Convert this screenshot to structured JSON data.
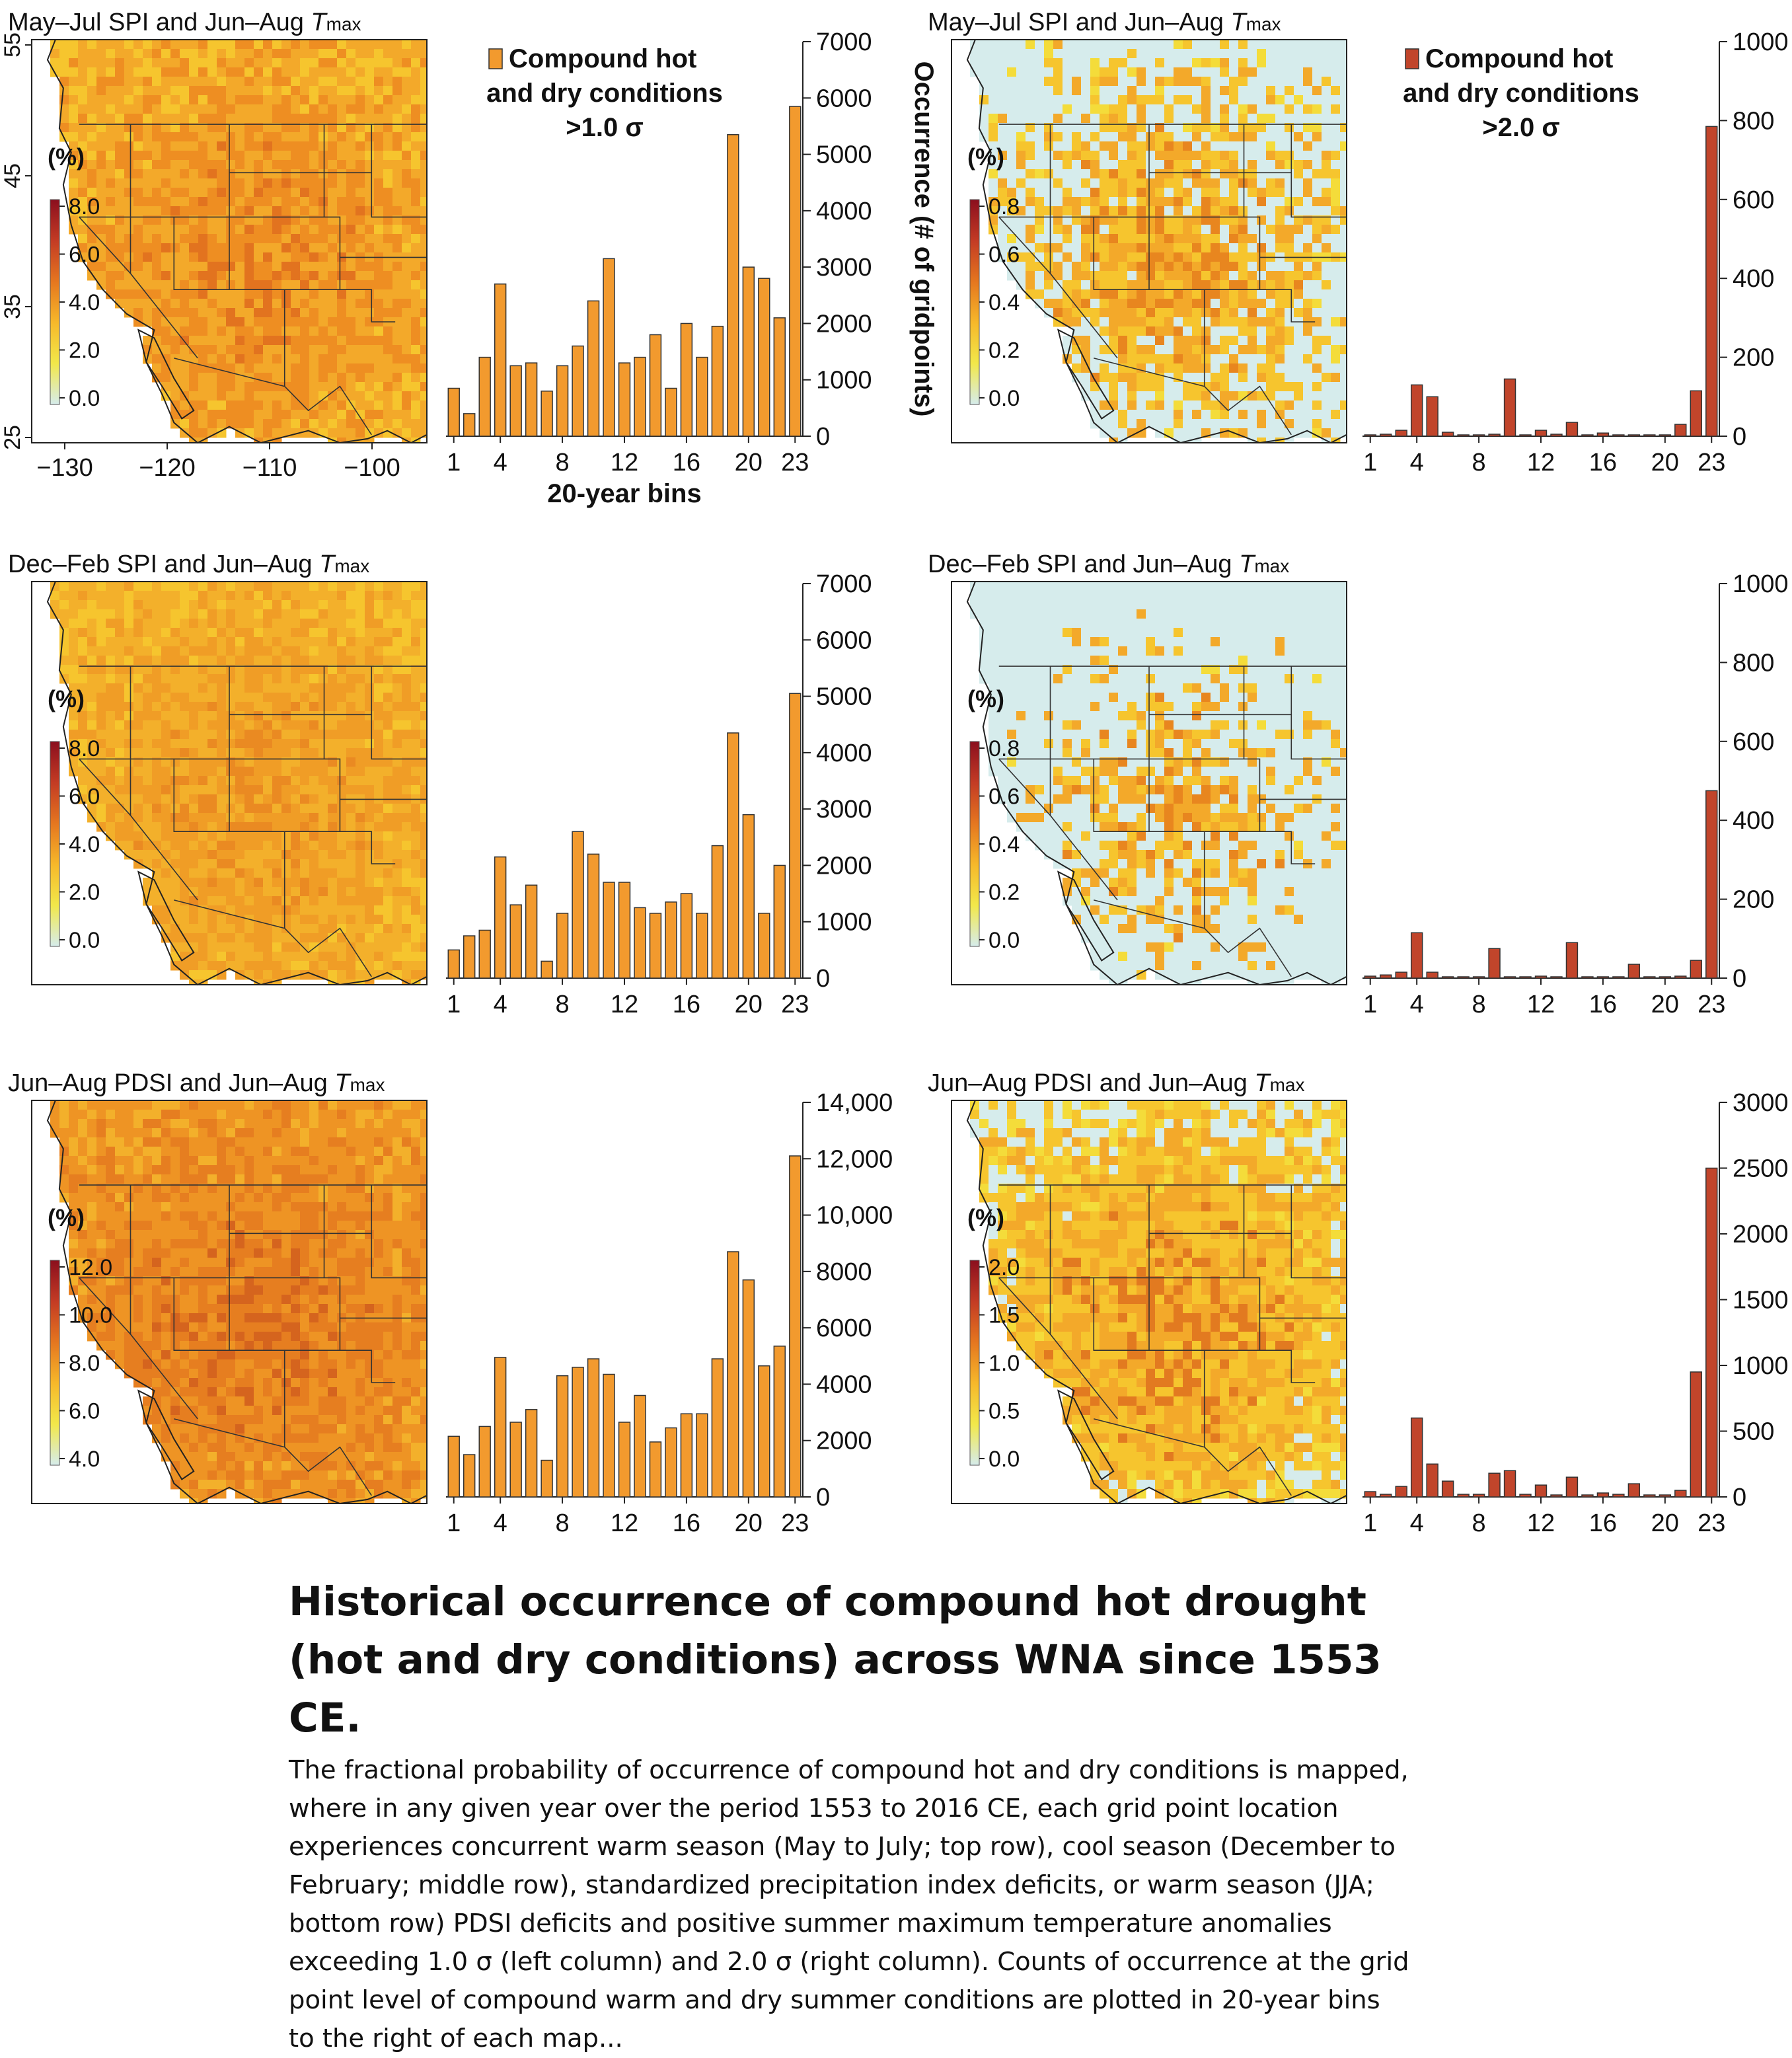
{
  "colors": {
    "orange": "#f29a2e",
    "red": "#c1452b",
    "ocean": "#ffffff",
    "low_map": "#d6ecec",
    "border": "#2a2a2a"
  },
  "panels": [
    {
      "map": {
        "title_main": "May–Jul SPI and Jun–Aug ",
        "title_t": "T",
        "title_sub": "max",
        "unit": "(%)",
        "colorbar_ticks": [
          "8.0",
          "6.0",
          "4.0",
          "2.0",
          "0.0"
        ],
        "colorbar_colors": [
          "#8b0f1e",
          "#c33b24",
          "#e5761f",
          "#f6b82a",
          "#f2e84a",
          "#d6ecec"
        ],
        "lat_ticks": [
          "55",
          "45",
          "35",
          "25"
        ],
        "lon_ticks": [
          "−130",
          "−120",
          "−110",
          "−100"
        ],
        "palette": [
          "#f6c52e",
          "#f3a92a",
          "#ee8e22",
          "#e2731f"
        ],
        "low_fraction": 0
      },
      "chart_data": {
        "type": "bar",
        "categories": [
          "1",
          "2",
          "3",
          "4",
          "5",
          "6",
          "7",
          "8",
          "9",
          "10",
          "11",
          "12",
          "13",
          "14",
          "15",
          "16",
          "17",
          "18",
          "19",
          "20",
          "21",
          "22",
          "23"
        ],
        "values": [
          850,
          400,
          1400,
          2700,
          1250,
          1300,
          800,
          1250,
          1600,
          2400,
          3150,
          1300,
          1400,
          1800,
          850,
          2000,
          1400,
          1950,
          5350,
          3000,
          2800,
          2100,
          5850
        ],
        "ylim": [
          0,
          7000
        ],
        "yticks": [
          "7000",
          "6000",
          "5000",
          "4000",
          "3000",
          "2000",
          "1000",
          "0"
        ],
        "xticks": [
          "1",
          "4",
          "8",
          "12",
          "16",
          "20",
          "23"
        ],
        "xlabel": "20-year bins",
        "ylabel": "Occurrence (# of gridpoints)",
        "legend": [
          "Compound hot",
          "and dry conditions",
          ">1.0 σ"
        ],
        "color": "#f29a2e"
      }
    },
    {
      "map": {
        "title_main": "May–Jul SPI and Jun–Aug ",
        "title_t": "T",
        "title_sub": "max",
        "unit": "(%)",
        "colorbar_ticks": [
          "0.8",
          "0.6",
          "0.4",
          "0.2",
          "0.0"
        ],
        "colorbar_colors": [
          "#8b0f1e",
          "#c33b24",
          "#e5761f",
          "#f6b82a",
          "#f2e84a",
          "#d6ecec"
        ],
        "lat_ticks": [],
        "lon_ticks": [],
        "palette": [
          "#f4dc3a",
          "#f6c52e",
          "#f3a92a",
          "#e8861f"
        ],
        "low_fraction": 0.62
      },
      "chart_data": {
        "type": "bar",
        "categories": [
          "1",
          "2",
          "3",
          "4",
          "5",
          "6",
          "7",
          "8",
          "9",
          "10",
          "11",
          "12",
          "13",
          "14",
          "15",
          "16",
          "17",
          "18",
          "19",
          "20",
          "21",
          "22",
          "23"
        ],
        "values": [
          2,
          5,
          15,
          130,
          100,
          10,
          3,
          2,
          5,
          145,
          3,
          15,
          5,
          35,
          3,
          8,
          3,
          3,
          3,
          3,
          30,
          115,
          785
        ],
        "ylim": [
          0,
          1000
        ],
        "yticks": [
          "1000",
          "800",
          "600",
          "400",
          "200",
          "0"
        ],
        "xticks": [
          "1",
          "4",
          "8",
          "12",
          "16",
          "20",
          "23"
        ],
        "legend": [
          "Compound hot",
          "and dry conditions",
          ">2.0 σ"
        ],
        "color": "#c1452b"
      }
    },
    {
      "map": {
        "title_main": "Dec–Feb SPI and Jun–Aug ",
        "title_t": "T",
        "title_sub": "max",
        "unit": "(%)",
        "colorbar_ticks": [
          "8.0",
          "6.0",
          "4.0",
          "2.0",
          "0.0"
        ],
        "colorbar_colors": [
          "#8b0f1e",
          "#c33b24",
          "#e5761f",
          "#f6b82a",
          "#f2e84a",
          "#d6ecec"
        ],
        "lat_ticks": [],
        "lon_ticks": [],
        "palette": [
          "#f6c52e",
          "#f3b02b",
          "#f09d26",
          "#ea8a22"
        ],
        "low_fraction": 0
      },
      "chart_data": {
        "type": "bar",
        "categories": [
          "1",
          "2",
          "3",
          "4",
          "5",
          "6",
          "7",
          "8",
          "9",
          "10",
          "11",
          "12",
          "13",
          "14",
          "15",
          "16",
          "17",
          "18",
          "19",
          "20",
          "21",
          "22",
          "23"
        ],
        "values": [
          500,
          750,
          850,
          2150,
          1300,
          1650,
          300,
          1150,
          2600,
          2200,
          1700,
          1700,
          1250,
          1150,
          1350,
          1500,
          1150,
          2350,
          4350,
          2900,
          1150,
          2000,
          5050
        ],
        "ylim": [
          0,
          7000
        ],
        "yticks": [
          "7000",
          "6000",
          "5000",
          "4000",
          "3000",
          "2000",
          "1000",
          "0"
        ],
        "xticks": [
          "1",
          "4",
          "8",
          "12",
          "16",
          "20",
          "23"
        ],
        "color": "#f29a2e"
      }
    },
    {
      "map": {
        "title_main": "Dec–Feb SPI and Jun–Aug ",
        "title_t": "T",
        "title_sub": "max",
        "unit": "(%)",
        "colorbar_ticks": [
          "0.8",
          "0.6",
          "0.4",
          "0.2",
          "0.0"
        ],
        "colorbar_colors": [
          "#8b0f1e",
          "#c33b24",
          "#e5761f",
          "#f6b82a",
          "#f2e84a",
          "#d6ecec"
        ],
        "lat_ticks": [],
        "lon_ticks": [],
        "palette": [
          "#f4dc3a",
          "#f6c52e",
          "#f3a92a",
          "#e8861f"
        ],
        "low_fraction": 0.8
      },
      "chart_data": {
        "type": "bar",
        "categories": [
          "1",
          "2",
          "3",
          "4",
          "5",
          "6",
          "7",
          "8",
          "9",
          "10",
          "11",
          "12",
          "13",
          "14",
          "15",
          "16",
          "17",
          "18",
          "19",
          "20",
          "21",
          "22",
          "23"
        ],
        "values": [
          5,
          8,
          15,
          115,
          15,
          3,
          3,
          3,
          75,
          3,
          3,
          5,
          3,
          90,
          3,
          3,
          3,
          35,
          3,
          3,
          5,
          45,
          475
        ],
        "ylim": [
          0,
          1000
        ],
        "yticks": [
          "1000",
          "800",
          "600",
          "400",
          "200",
          "0"
        ],
        "xticks": [
          "1",
          "4",
          "8",
          "12",
          "16",
          "20",
          "23"
        ],
        "color": "#c1452b"
      }
    },
    {
      "map": {
        "title_main": "Jun–Aug PDSI and Jun–Aug ",
        "title_t": "T",
        "title_sub": "max",
        "unit": "(%)",
        "colorbar_ticks": [
          "12.0",
          "10.0",
          "8.0",
          "6.0",
          "4.0"
        ],
        "colorbar_colors": [
          "#8b0f1e",
          "#c33b24",
          "#e5761f",
          "#f6b82a",
          "#f2e84a",
          "#d6ecec"
        ],
        "lat_ticks": [],
        "lon_ticks": [],
        "palette": [
          "#f3b02b",
          "#ee9424",
          "#e67e20",
          "#d5641e"
        ],
        "low_fraction": 0
      },
      "chart_data": {
        "type": "bar",
        "categories": [
          "1",
          "2",
          "3",
          "4",
          "5",
          "6",
          "7",
          "8",
          "9",
          "10",
          "11",
          "12",
          "13",
          "14",
          "15",
          "16",
          "17",
          "18",
          "19",
          "20",
          "21",
          "22",
          "23"
        ],
        "values": [
          2150,
          1500,
          2500,
          4950,
          2650,
          3100,
          1300,
          4300,
          4600,
          4900,
          4350,
          2650,
          3600,
          1950,
          2450,
          2950,
          2950,
          4900,
          8700,
          7700,
          4650,
          5350,
          12100
        ],
        "ylim": [
          0,
          14000
        ],
        "yticks": [
          "14,000",
          "12,000",
          "10,000",
          "8000",
          "6000",
          "4000",
          "2000",
          "0"
        ],
        "xticks": [
          "1",
          "4",
          "8",
          "12",
          "16",
          "20",
          "23"
        ],
        "color": "#f29a2e"
      }
    },
    {
      "map": {
        "title_main": "Jun–Aug PDSI and Jun–Aug ",
        "title_t": "T",
        "title_sub": "max",
        "unit": "(%)",
        "colorbar_ticks": [
          "2.0",
          "1.5",
          "1.0",
          "0.5",
          "0.0"
        ],
        "colorbar_colors": [
          "#8b0f1e",
          "#c33b24",
          "#e5761f",
          "#f6b82a",
          "#f2e84a",
          "#d6ecec"
        ],
        "lat_ticks": [],
        "lon_ticks": [],
        "palette": [
          "#f4dc3a",
          "#f6c52e",
          "#f3a92a",
          "#e27a20"
        ],
        "low_fraction": 0.35
      },
      "chart_data": {
        "type": "bar",
        "categories": [
          "1",
          "2",
          "3",
          "4",
          "5",
          "6",
          "7",
          "8",
          "9",
          "10",
          "11",
          "12",
          "13",
          "14",
          "15",
          "16",
          "17",
          "18",
          "19",
          "20",
          "21",
          "22",
          "23"
        ],
        "values": [
          40,
          20,
          80,
          600,
          250,
          120,
          20,
          20,
          180,
          200,
          20,
          90,
          15,
          150,
          15,
          30,
          20,
          100,
          15,
          15,
          50,
          950,
          2500
        ],
        "ylim": [
          0,
          3000
        ],
        "yticks": [
          "3000",
          "2500",
          "2000",
          "1500",
          "1000",
          "500",
          "0"
        ],
        "xticks": [
          "1",
          "4",
          "8",
          "12",
          "16",
          "20",
          "23"
        ],
        "color": "#c1452b"
      }
    }
  ],
  "caption": {
    "title": "Historical occurrence of compound hot drought (hot and dry conditions) across WNA since 1553 CE.",
    "body": "The fractional probability of occurrence of compound hot and dry conditions is mapped, where in any given year over the period 1553 to 2016 CE, each grid point location experiences concurrent warm season (May to July; top row), cool season (December to February; middle row), standardized precipitation index deficits, or warm season (JJA; bottom row) PDSI deficits and positive summer maximum temperature anomalies exceeding 1.0 σ (left column) and 2.0 σ (right column). Counts of occurrence at the grid point level of compound warm and dry summer conditions are plotted in 20-year bins to the right of each map..."
  }
}
